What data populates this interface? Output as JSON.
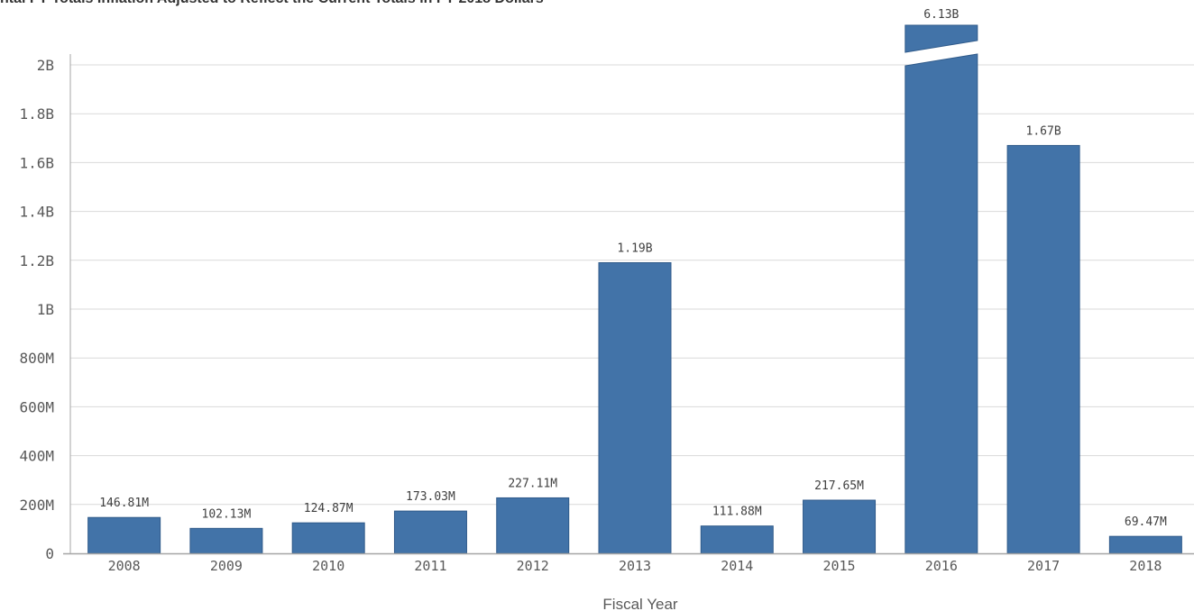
{
  "chart_data": {
    "type": "bar",
    "title": "ntal FY Totals Inflation Adjusted to Reflect the Current Totals in FY 2018 Dollars",
    "xlabel": "Fiscal Year",
    "ylabel": "",
    "ylim": [
      0,
      2000000000
    ],
    "yticks": [
      {
        "value": 0,
        "label": "0"
      },
      {
        "value": 200000000,
        "label": "200M"
      },
      {
        "value": 400000000,
        "label": "400M"
      },
      {
        "value": 600000000,
        "label": "600M"
      },
      {
        "value": 800000000,
        "label": "800M"
      },
      {
        "value": 1000000000,
        "label": "1B"
      },
      {
        "value": 1200000000,
        "label": "1.2B"
      },
      {
        "value": 1400000000,
        "label": "1.4B"
      },
      {
        "value": 1600000000,
        "label": "1.6B"
      },
      {
        "value": 1800000000,
        "label": "1.8B"
      },
      {
        "value": 2000000000,
        "label": "2B"
      }
    ],
    "grid": true,
    "categories": [
      "2008",
      "2009",
      "2010",
      "2011",
      "2012",
      "2013",
      "2014",
      "2015",
      "2016",
      "2017",
      "2018"
    ],
    "values": [
      146810000,
      102130000,
      124870000,
      173030000,
      227110000,
      1190000000,
      111880000,
      217650000,
      6130000000,
      1670000000,
      69470000
    ],
    "data_labels": [
      "146.81M",
      "102.13M",
      "124.87M",
      "173.03M",
      "227.11M",
      "1.19B",
      "111.88M",
      "217.65M",
      "6.13B",
      "1.67B",
      "69.47M"
    ],
    "bar_color": "#4273a8",
    "bar_border_color": "#2f5a8a",
    "grid_color": "#d9d9d9",
    "axis_color": "#a6a6a6"
  }
}
